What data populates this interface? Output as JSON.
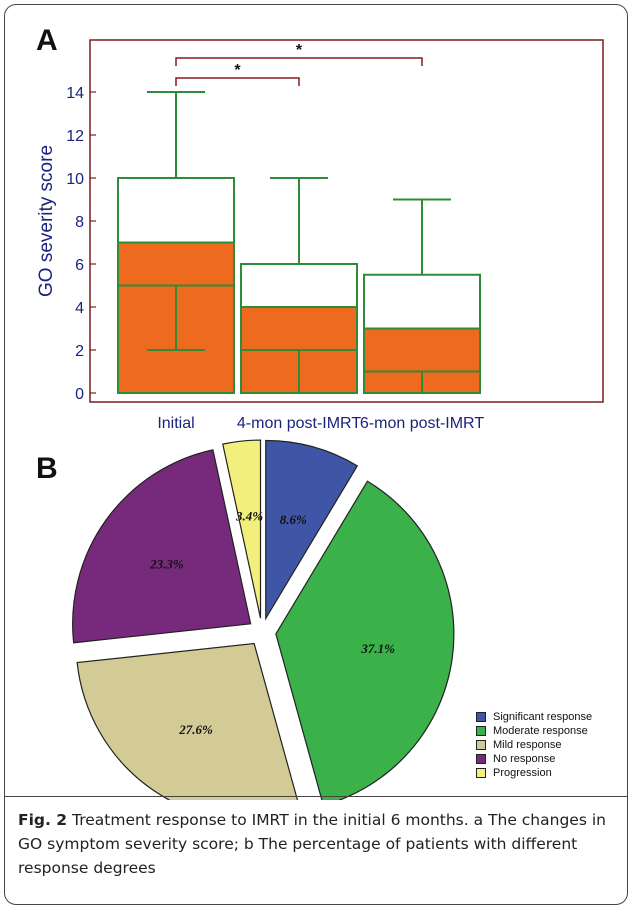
{
  "panel_a_letter": "A",
  "panel_b_letter": "B",
  "caption": {
    "label": "Fig. 2",
    "text": " Treatment response to IMRT in the initial 6 months. a The changes in GO symptom severity score; b The percentage of patients with different response degrees"
  },
  "colors": {
    "frame": "#7b1e1e",
    "bar_fill": "#ee6a1e",
    "box_stroke": "#2e8b3a",
    "axis_text": "#1a237e",
    "bracket": "#8b1a1a"
  },
  "chart_data": [
    {
      "type": "bar",
      "panel": "A",
      "categories": [
        "Initial",
        "4-mon post-IMRT",
        "6-mon post-IMRT"
      ],
      "ylabel": "GO severity score",
      "ylim": [
        -0.6,
        16
      ],
      "yticks": [
        0,
        2,
        4,
        6,
        8,
        10,
        12,
        14
      ],
      "values": [
        7,
        4,
        3
      ],
      "boxes": [
        {
          "min": 2,
          "q1": 5,
          "median": 7,
          "q3": 10,
          "max": 14
        },
        {
          "min": 0,
          "q1": 2,
          "median": 4,
          "q3": 6,
          "max": 10
        },
        {
          "min": 0,
          "q1": 1,
          "median": 3,
          "q3": 5.5,
          "max": 9
        }
      ],
      "significance": [
        {
          "from": 0,
          "to": 1,
          "label": "*"
        },
        {
          "from": 0,
          "to": 2,
          "label": "*"
        }
      ]
    },
    {
      "type": "pie",
      "panel": "B",
      "slices": [
        {
          "label": "Significant response",
          "value": 8.6,
          "text": "8.6%",
          "color": "#3f56a6"
        },
        {
          "label": "Moderate response",
          "value": 37.1,
          "text": "37.1%",
          "color": "#3bb14a"
        },
        {
          "label": "Mild response",
          "value": 27.6,
          "text": "27.6%",
          "color": "#d3cb96"
        },
        {
          "label": "No response",
          "value": 23.3,
          "text": "23.3%",
          "color": "#772a7b"
        },
        {
          "label": "Progression",
          "value": 3.4,
          "text": "3.4%",
          "color": "#f3ef7c"
        }
      ]
    }
  ]
}
